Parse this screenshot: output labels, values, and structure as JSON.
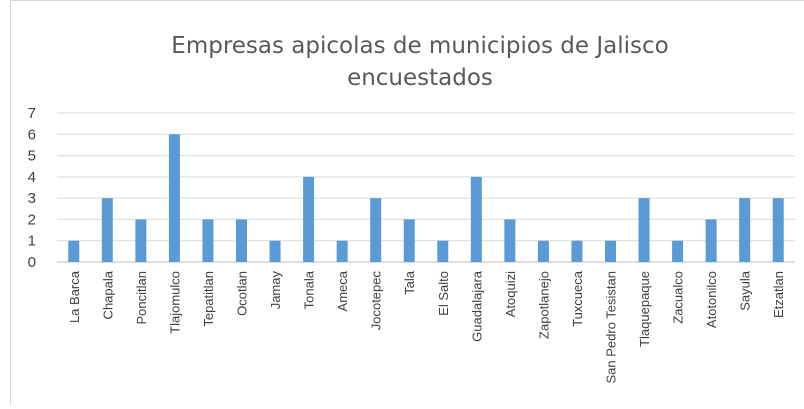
{
  "chart_data": {
    "type": "bar",
    "title": "Empresas apicolas de municipios de Jalisco encuestados",
    "categories": [
      "La Barca",
      "Chapala",
      "Poncitlan",
      "Tlajomulco",
      "Tepatitlan",
      "Ocotlan",
      "Jamay",
      "Tonala",
      "Ameca",
      "Jocotepec",
      "Tala",
      "El Salto",
      "Guadalajara",
      "Atoquizi",
      "Zapotlanejo",
      "Tuxcueca",
      "San Pedro Tesistan",
      "Tlaquepaque",
      "Zacualco",
      "Atotonilco",
      "Sayula",
      "Etzatlan"
    ],
    "values": [
      1,
      3,
      2,
      6,
      2,
      2,
      1,
      4,
      1,
      3,
      2,
      1,
      4,
      2,
      1,
      1,
      1,
      3,
      1,
      2,
      3,
      3
    ],
    "color": "#5b9bd5",
    "ylim": [
      0,
      7
    ],
    "yticks": [
      0,
      1,
      2,
      3,
      4,
      5,
      6,
      7
    ],
    "grid": true
  }
}
